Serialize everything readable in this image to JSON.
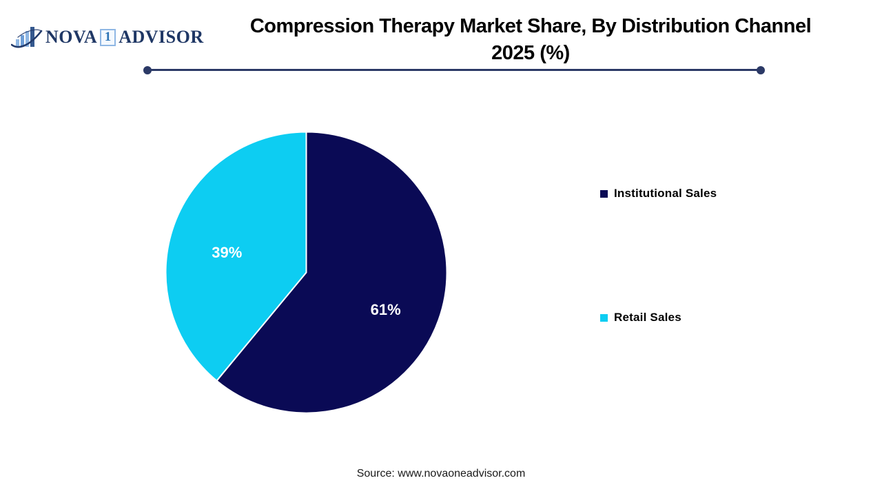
{
  "logo": {
    "brand_nova": "NOVA",
    "brand_one": "1",
    "brand_advisor": "ADVISOR"
  },
  "header": {
    "title_line1": "Compression Therapy Market Share, By Distribution Channel",
    "title_line2": "2025 (%)"
  },
  "chart_data": {
    "type": "pie",
    "title": "Compression Therapy Market Share, By Distribution Channel 2025 (%)",
    "categories": [
      "Institutional Sales",
      "Retail Sales"
    ],
    "values": [
      61,
      39
    ],
    "labels": [
      "61%",
      "39%"
    ],
    "colors": [
      "#0a0a55",
      "#0dcdf2"
    ],
    "start_angle_deg": 0,
    "direction": "clockwise",
    "slice_border_color": "#ffffff",
    "legend_position": "right"
  },
  "legend": {
    "items": [
      {
        "label": "Institutional Sales",
        "color": "#0a0a55"
      },
      {
        "label": "Retail Sales",
        "color": "#0dcdf2"
      }
    ]
  },
  "footer": {
    "source": "Source: www.novaoneadvisor.com"
  },
  "colors": {
    "divider": "#2b3966",
    "logo_navy": "#1f3765",
    "logo_light_blue": "#8fb7e4",
    "title_text": "#000000",
    "background": "#ffffff"
  }
}
